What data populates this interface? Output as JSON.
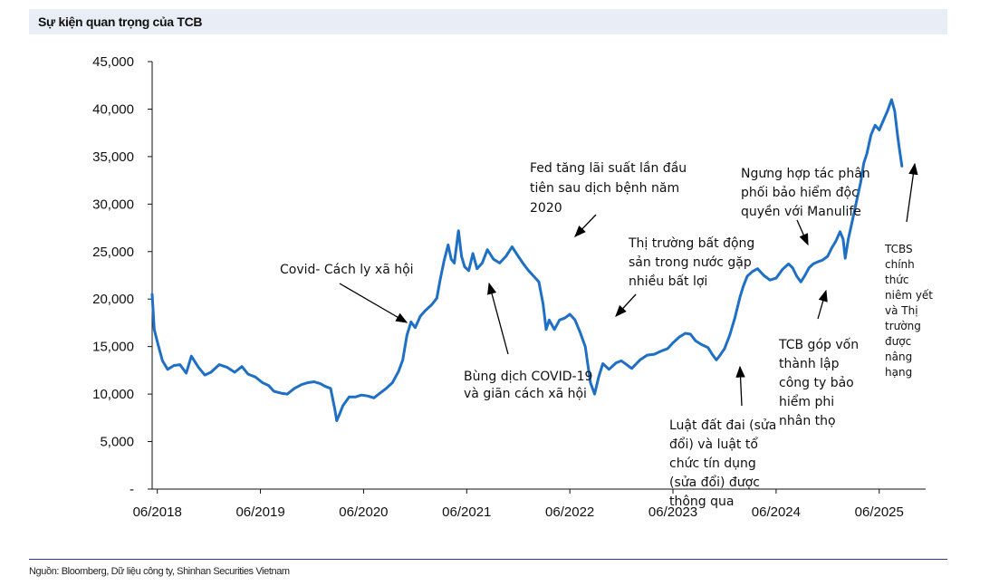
{
  "header": {
    "title": "Sự kiện quan trọng của TCB"
  },
  "footer": {
    "source": "Nguồn: Bloomberg, Dữ liệu công ty, Shinhan Securities Vietnam"
  },
  "colors": {
    "series": "#1f6fc4",
    "axis": "#111111",
    "header_bg": "#e9edf5",
    "rule": "#2b3a9e"
  },
  "chart_data": {
    "type": "line",
    "title": "Sự kiện quan trọng của TCB",
    "xlabel": "",
    "ylabel": "",
    "ylim": [
      0,
      45000
    ],
    "xlim": [
      2018.45,
      2025.95
    ],
    "y_ticks": [
      0,
      5000,
      10000,
      15000,
      20000,
      25000,
      30000,
      35000,
      40000,
      45000
    ],
    "y_tick_labels": [
      "-",
      "5,000",
      "10,000",
      "15,000",
      "20,000",
      "25,000",
      "30,000",
      "35,000",
      "40,000",
      "45,000"
    ],
    "x_ticks": [
      2018.5,
      2019.5,
      2020.5,
      2021.5,
      2022.5,
      2023.5,
      2024.5,
      2025.5
    ],
    "x_tick_labels": [
      "06/2018",
      "06/2019",
      "06/2020",
      "06/2021",
      "06/2022",
      "06/2023",
      "06/2024",
      "06/2025"
    ],
    "series": [
      {
        "name": "TCB",
        "points": [
          [
            2018.45,
            20500
          ],
          [
            2018.47,
            16800
          ],
          [
            2018.5,
            15500
          ],
          [
            2018.55,
            13500
          ],
          [
            2018.6,
            12600
          ],
          [
            2018.66,
            13000
          ],
          [
            2018.72,
            13100
          ],
          [
            2018.78,
            12200
          ],
          [
            2018.83,
            14000
          ],
          [
            2018.9,
            12800
          ],
          [
            2018.96,
            12000
          ],
          [
            2019.02,
            12300
          ],
          [
            2019.1,
            13100
          ],
          [
            2019.18,
            12800
          ],
          [
            2019.25,
            12300
          ],
          [
            2019.32,
            12900
          ],
          [
            2019.38,
            12100
          ],
          [
            2019.45,
            11800
          ],
          [
            2019.52,
            11200
          ],
          [
            2019.58,
            10900
          ],
          [
            2019.63,
            10300
          ],
          [
            2019.7,
            10100
          ],
          [
            2019.76,
            10000
          ],
          [
            2019.83,
            10600
          ],
          [
            2019.9,
            11000
          ],
          [
            2019.96,
            11200
          ],
          [
            2020.02,
            11300
          ],
          [
            2020.08,
            11100
          ],
          [
            2020.13,
            10800
          ],
          [
            2020.18,
            10600
          ],
          [
            2020.22,
            8500
          ],
          [
            2020.24,
            7200
          ],
          [
            2020.26,
            7700
          ],
          [
            2020.3,
            8800
          ],
          [
            2020.36,
            9700
          ],
          [
            2020.42,
            9700
          ],
          [
            2020.48,
            9900
          ],
          [
            2020.54,
            9800
          ],
          [
            2020.6,
            9600
          ],
          [
            2020.66,
            10100
          ],
          [
            2020.72,
            10600
          ],
          [
            2020.78,
            11200
          ],
          [
            2020.84,
            12400
          ],
          [
            2020.88,
            13600
          ],
          [
            2020.92,
            16200
          ],
          [
            2020.96,
            17600
          ],
          [
            2021.0,
            17000
          ],
          [
            2021.05,
            18200
          ],
          [
            2021.1,
            18800
          ],
          [
            2021.16,
            19400
          ],
          [
            2021.21,
            20100
          ],
          [
            2021.24,
            21900
          ],
          [
            2021.28,
            24000
          ],
          [
            2021.32,
            25700
          ],
          [
            2021.35,
            24200
          ],
          [
            2021.38,
            23800
          ],
          [
            2021.42,
            27200
          ],
          [
            2021.45,
            24500
          ],
          [
            2021.48,
            23400
          ],
          [
            2021.52,
            23000
          ],
          [
            2021.56,
            24800
          ],
          [
            2021.6,
            23200
          ],
          [
            2021.65,
            23800
          ],
          [
            2021.7,
            25200
          ],
          [
            2021.76,
            24200
          ],
          [
            2021.82,
            23800
          ],
          [
            2021.88,
            24500
          ],
          [
            2021.94,
            25500
          ],
          [
            2022.0,
            24500
          ],
          [
            2022.05,
            23700
          ],
          [
            2022.1,
            23000
          ],
          [
            2022.15,
            22400
          ],
          [
            2022.2,
            21800
          ],
          [
            2022.24,
            19500
          ],
          [
            2022.27,
            16800
          ],
          [
            2022.3,
            17800
          ],
          [
            2022.35,
            16800
          ],
          [
            2022.4,
            17800
          ],
          [
            2022.45,
            18000
          ],
          [
            2022.5,
            18400
          ],
          [
            2022.55,
            17800
          ],
          [
            2022.6,
            16500
          ],
          [
            2022.65,
            15000
          ],
          [
            2022.7,
            11200
          ],
          [
            2022.74,
            10000
          ],
          [
            2022.78,
            11800
          ],
          [
            2022.82,
            13200
          ],
          [
            2022.88,
            12600
          ],
          [
            2022.95,
            13300
          ],
          [
            2023.0,
            13500
          ],
          [
            2023.05,
            13100
          ],
          [
            2023.1,
            12700
          ],
          [
            2023.18,
            13600
          ],
          [
            2023.25,
            14100
          ],
          [
            2023.32,
            14200
          ],
          [
            2023.38,
            14500
          ],
          [
            2023.45,
            14800
          ],
          [
            2023.5,
            15400
          ],
          [
            2023.56,
            16000
          ],
          [
            2023.62,
            16400
          ],
          [
            2023.67,
            16300
          ],
          [
            2023.72,
            15600
          ],
          [
            2023.78,
            15200
          ],
          [
            2023.84,
            14900
          ],
          [
            2023.88,
            14200
          ],
          [
            2023.92,
            13600
          ],
          [
            2023.95,
            14000
          ],
          [
            2024.0,
            14800
          ],
          [
            2024.05,
            16200
          ],
          [
            2024.1,
            18000
          ],
          [
            2024.15,
            20200
          ],
          [
            2024.18,
            21300
          ],
          [
            2024.22,
            22400
          ],
          [
            2024.27,
            22900
          ],
          [
            2024.32,
            23200
          ],
          [
            2024.38,
            22500
          ],
          [
            2024.44,
            22000
          ],
          [
            2024.5,
            22200
          ],
          [
            2024.56,
            23100
          ],
          [
            2024.62,
            23700
          ],
          [
            2024.66,
            23300
          ],
          [
            2024.7,
            22400
          ],
          [
            2024.74,
            21800
          ],
          [
            2024.78,
            22500
          ],
          [
            2024.82,
            23300
          ],
          [
            2024.86,
            23700
          ],
          [
            2024.9,
            23900
          ],
          [
            2024.95,
            24100
          ],
          [
            2025.0,
            24500
          ],
          [
            2025.04,
            25400
          ],
          [
            2025.08,
            26100
          ],
          [
            2025.12,
            27100
          ],
          [
            2025.15,
            26300
          ],
          [
            2025.17,
            24300
          ],
          [
            2025.2,
            26300
          ],
          [
            2025.24,
            28300
          ],
          [
            2025.28,
            30300
          ],
          [
            2025.32,
            32300
          ],
          [
            2025.35,
            34300
          ],
          [
            2025.38,
            35300
          ],
          [
            2025.42,
            37300
          ],
          [
            2025.46,
            38300
          ],
          [
            2025.5,
            37800
          ],
          [
            2025.54,
            38800
          ],
          [
            2025.58,
            39800
          ],
          [
            2025.62,
            41000
          ],
          [
            2025.65,
            39800
          ],
          [
            2025.68,
            37000
          ],
          [
            2025.7,
            35500
          ],
          [
            2025.72,
            34000
          ]
        ]
      }
    ],
    "annotations": [
      {
        "lines": [
          "Covid- Cách ly xã hội"
        ]
      },
      {
        "lines": [
          "Bùng dịch COVID-19",
          "và giãn cách xã hội"
        ]
      },
      {
        "lines": [
          "Fed tăng lãi suất lần đầu",
          "tiên sau dịch bệnh năm",
          "2020"
        ]
      },
      {
        "lines": [
          "Thị trường bất động",
          "sản trong nước gặp",
          "nhiều bất lợi"
        ]
      },
      {
        "lines": [
          "Luật đất đai (sửa",
          "đổi) và luật tổ",
          "chức tín dụng",
          "(sửa đổi) được",
          "thông qua"
        ]
      },
      {
        "lines": [
          "Ngưng hợp tác phân",
          "phối bảo hiểm độc",
          "quyền với Manulife"
        ]
      },
      {
        "lines": [
          "TCB góp vốn",
          "thành lập",
          "công ty bảo",
          "hiểm phi",
          "nhân thọ"
        ]
      },
      {
        "lines": [
          "TCBS",
          "chính",
          "thức",
          "niêm yết",
          "và Thị",
          "trường",
          "được",
          "nâng",
          "hạng"
        ]
      }
    ]
  }
}
